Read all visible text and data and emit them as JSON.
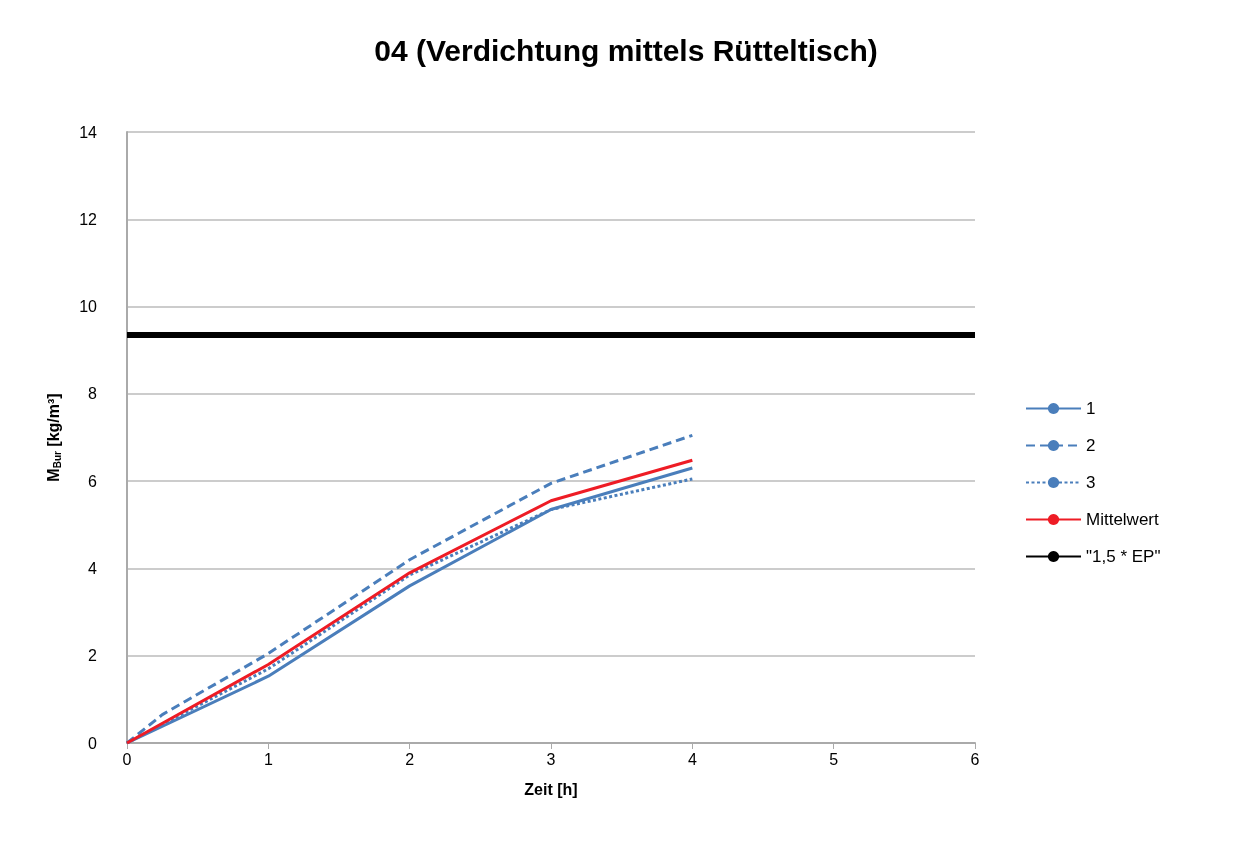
{
  "chart_data": {
    "type": "line",
    "title": "04 (Verdichtung mittels Rütteltisch)",
    "xlabel": "Zeit [h]",
    "ylabel": "M$_{Bur}$ [kg/m³]",
    "x": [
      0,
      1,
      2,
      3,
      4
    ],
    "series": [
      {
        "name": "1",
        "color": "#4a7ebb",
        "values": [
          0,
          1.53,
          3.6,
          5.35,
          6.3
        ],
        "line_style": "solid"
      },
      {
        "name": "2",
        "color": "#4a7ebb",
        "x": [
          0,
          0.25,
          1,
          2,
          3,
          4
        ],
        "values": [
          0,
          0.65,
          2.05,
          4.2,
          5.95,
          7.05
        ],
        "line_style": "dashed"
      },
      {
        "name": "3",
        "color": "#4a7ebb",
        "values": [
          0,
          1.7,
          3.85,
          5.35,
          6.05
        ],
        "line_style": "dotted"
      },
      {
        "name": "Mittelwert",
        "color": "#ee1c25",
        "values": [
          0,
          1.8,
          3.9,
          5.55,
          6.48
        ],
        "line_style": "solid"
      },
      {
        "name": "\"1,5 * EP\"",
        "color": "#000000",
        "x": [
          0,
          6
        ],
        "values": [
          9.35,
          9.35
        ],
        "line_style": "solid"
      }
    ],
    "xlim": [
      0,
      6
    ],
    "xticks": [
      0,
      1,
      2,
      3,
      4,
      5,
      6
    ],
    "ylim": [
      0,
      14
    ],
    "yticks": [
      0,
      2,
      4,
      6,
      8,
      10,
      12,
      14
    ],
    "grid": "y",
    "legend": "right",
    "marker": "none"
  }
}
